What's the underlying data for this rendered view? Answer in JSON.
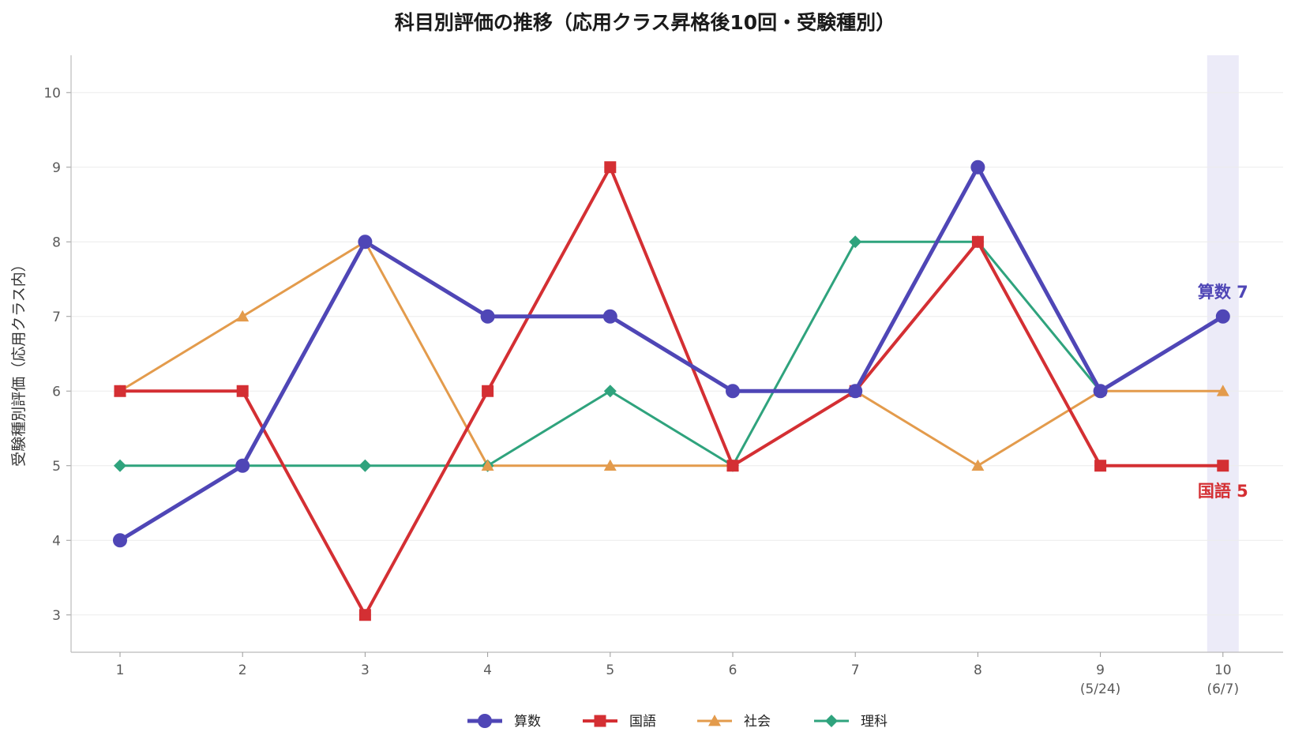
{
  "chart_data": {
    "type": "line",
    "title": "科目別評価の推移（応用クラス昇格後10回・受験種別）",
    "xlabel": "",
    "ylabel": "受験種別評価（応用クラス内）",
    "categories": [
      "1",
      "2",
      "3",
      "4",
      "5",
      "6",
      "7",
      "8",
      "9",
      "10"
    ],
    "category_sublabels": [
      "",
      "",
      "",
      "",
      "",
      "",
      "",
      "",
      "(5/24)",
      "(6/7)"
    ],
    "yticks": [
      3,
      4,
      5,
      6,
      7,
      8,
      9,
      10
    ],
    "ylim": [
      2.5,
      10.5
    ],
    "grid": "horizontal",
    "legend_position": "bottom-center",
    "highlight_category": "10",
    "highlight_color": "#ecebf8",
    "series": [
      {
        "name": "算数",
        "values": [
          4,
          5,
          8,
          7,
          7,
          6,
          6,
          9,
          6,
          7
        ],
        "color": "#4f46b6",
        "marker": "circle"
      },
      {
        "name": "国語",
        "values": [
          6,
          6,
          3,
          6,
          9,
          5,
          6,
          8,
          5,
          5
        ],
        "color": "#d42f33",
        "marker": "square"
      },
      {
        "name": "社会",
        "values": [
          6,
          7,
          8,
          5,
          5,
          5,
          6,
          5,
          6,
          6
        ],
        "color": "#e39b4c",
        "marker": "triangle"
      },
      {
        "name": "理科",
        "values": [
          5,
          5,
          5,
          5,
          6,
          5,
          8,
          8,
          6,
          null
        ],
        "color": "#2fa37d",
        "marker": "diamond"
      }
    ],
    "annotations": [
      {
        "text": "算数 7",
        "category": "10",
        "value": 7,
        "color": "#4f46b6"
      },
      {
        "text": "国語 5",
        "category": "10",
        "value": 5,
        "color": "#d42f33"
      }
    ]
  }
}
